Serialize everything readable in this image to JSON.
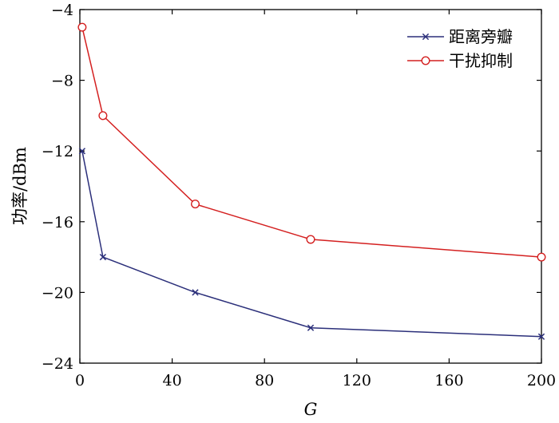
{
  "chart_data": {
    "type": "line",
    "title": "",
    "xlabel": "G",
    "ylabel": "功率/dBm",
    "xlim": [
      0,
      200
    ],
    "ylim": [
      -24,
      -4
    ],
    "x_ticks": [
      "0",
      "40",
      "80",
      "120",
      "160",
      "200"
    ],
    "y_ticks": [
      "−4",
      "−8",
      "−12",
      "−16",
      "−20",
      "−24"
    ],
    "x_tick_values": [
      0,
      40,
      80,
      120,
      160,
      200
    ],
    "y_tick_values": [
      -4,
      -8,
      -12,
      -16,
      -20,
      -24
    ],
    "grid": false,
    "legend_position": "top-right",
    "series": [
      {
        "name": "距离旁瓣",
        "color": "#2b2f7a",
        "marker": "x",
        "x": [
          1,
          10,
          50,
          100,
          200
        ],
        "y": [
          -12,
          -18,
          -20,
          -22,
          -22.5
        ]
      },
      {
        "name": "干扰抑制",
        "color": "#d42020",
        "marker": "circle",
        "x": [
          1,
          10,
          50,
          100,
          200
        ],
        "y": [
          -5,
          -10,
          -15,
          -17,
          -18
        ]
      }
    ]
  }
}
